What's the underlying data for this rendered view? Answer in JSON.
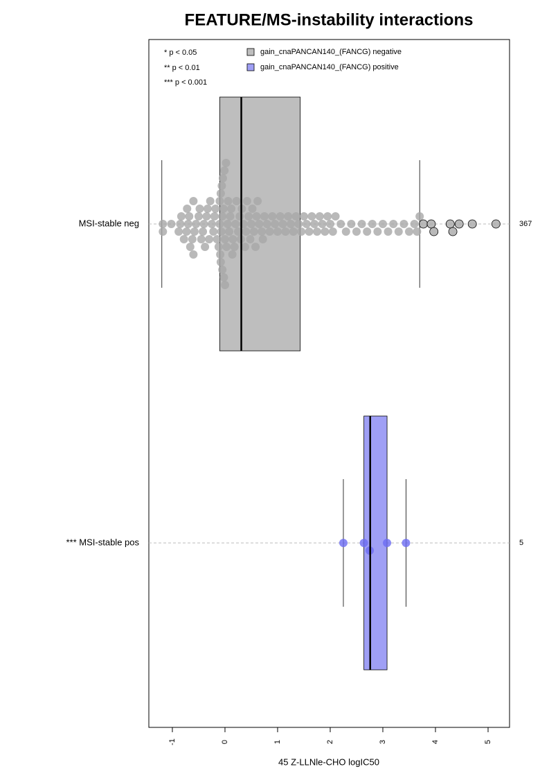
{
  "chart_data": {
    "type": "box",
    "title": "FEATURE/MS-instability interactions",
    "x_label": "45 Z-LLNle-CHO logIC50",
    "xlim": [
      -1.447,
      5.408
    ],
    "xticks": [
      -1,
      0,
      1,
      2,
      3,
      4,
      5
    ],
    "significance_legend": [
      "* p < 0.05",
      "** p < 0.01",
      "*** p < 0.001"
    ],
    "series": [
      {
        "name": "gain_cnaPANCAN140_(FANCG) negative",
        "color": "#bebebe",
        "point_color": "#a8a8a8",
        "category": "MSI-stable neg",
        "n": 367,
        "whisker_low": -1.2,
        "q1": -0.1,
        "median": 0.31,
        "q3": 1.43,
        "whisker_high": 3.7,
        "points": [
          -1.18,
          -1.18,
          -1.02,
          -0.88,
          -0.85,
          -0.83,
          -0.78,
          -0.73,
          -0.72,
          -0.7,
          -0.68,
          -0.66,
          -0.62,
          -0.6,
          -0.6,
          -0.58,
          -0.55,
          -0.5,
          -0.48,
          -0.45,
          -0.42,
          -0.4,
          -0.38,
          -0.35,
          -0.33,
          -0.3,
          -0.28,
          -0.25,
          -0.22,
          -0.2,
          -0.18,
          -0.15,
          -0.12,
          -0.1,
          -0.1,
          -0.09,
          -0.08,
          -0.08,
          -0.07,
          -0.06,
          -0.05,
          -0.05,
          -0.04,
          -0.03,
          -0.02,
          -0.01,
          0,
          0,
          0.02,
          0.03,
          0.05,
          0.06,
          0.08,
          0.1,
          0.12,
          0.14,
          0.15,
          0.18,
          0.2,
          0.22,
          0.25,
          0.28,
          0.3,
          0.32,
          0.35,
          0.38,
          0.4,
          0.42,
          0.45,
          0.48,
          0.5,
          0.52,
          0.55,
          0.58,
          0.6,
          0.62,
          0.65,
          0.7,
          0.72,
          0.75,
          0.8,
          0.85,
          0.9,
          0.95,
          1.0,
          1.05,
          1.1,
          1.15,
          1.2,
          1.25,
          1.3,
          1.35,
          1.4,
          1.45,
          1.5,
          1.55,
          1.6,
          1.65,
          1.7,
          1.75,
          1.8,
          1.85,
          1.9,
          1.95,
          2.0,
          2.05,
          2.1,
          2.2,
          2.3,
          2.4,
          2.5,
          2.6,
          2.7,
          2.8,
          2.9,
          3.0,
          3.1,
          3.2,
          3.3,
          3.4,
          3.5,
          3.6,
          3.65,
          3.7,
          3.77,
          3.92,
          3.97,
          4.28,
          4.33,
          4.45,
          4.7,
          5.15
        ]
      },
      {
        "name": "gain_cnaPANCAN140_(FANCG) positive",
        "color": "#9f9ff5",
        "point_color": "#6b6bf2",
        "category": "*** MSI-stable pos",
        "n": 5,
        "whisker_low": 2.25,
        "q1": 2.64,
        "median": 2.76,
        "q3": 3.08,
        "whisker_high": 3.44,
        "points": [
          2.25,
          2.64,
          2.75,
          3.08,
          3.44
        ]
      }
    ]
  }
}
